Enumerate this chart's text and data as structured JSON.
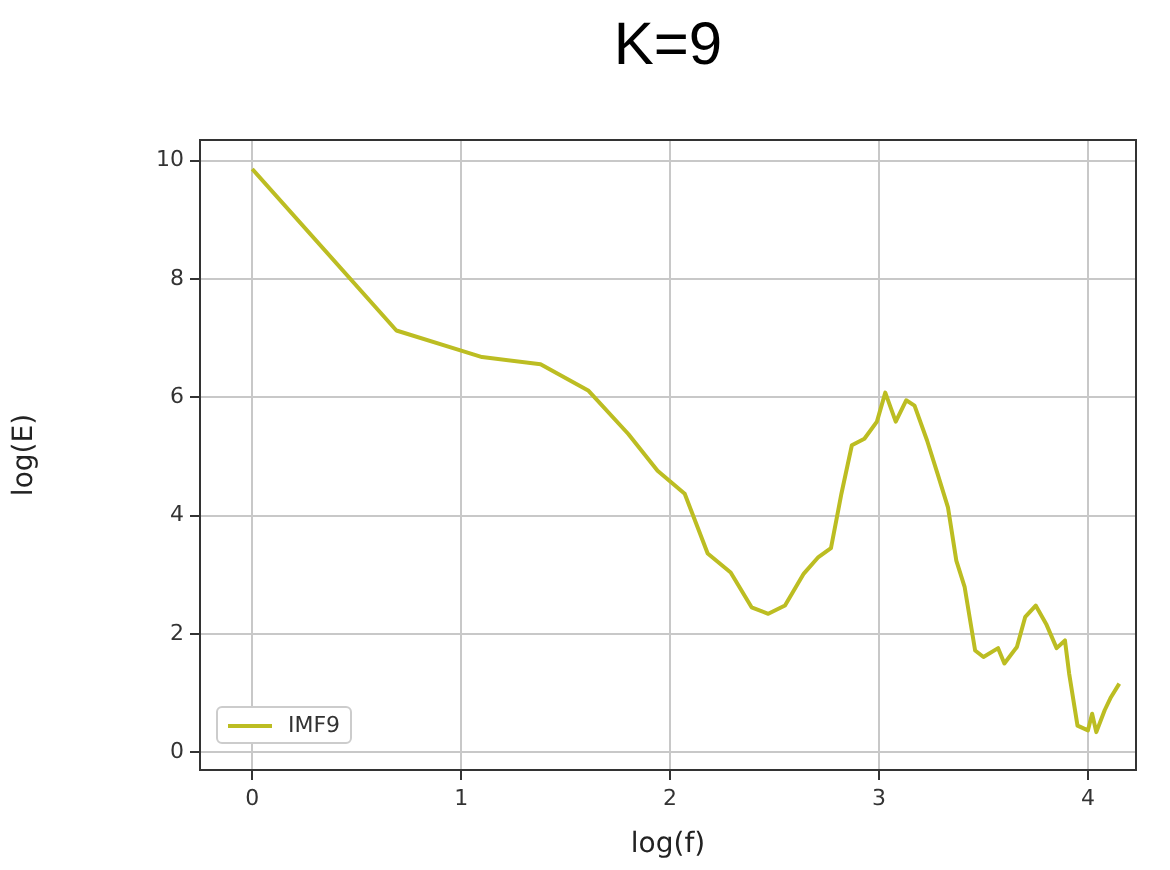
{
  "chart_data": {
    "type": "line",
    "title": "K=9",
    "xlabel": "log(f)",
    "ylabel": "log(E)",
    "xlim": [
      -0.25,
      4.23
    ],
    "ylim": [
      -0.3,
      10.35
    ],
    "xticks": [
      0,
      1,
      2,
      3,
      4
    ],
    "yticks": [
      0,
      2,
      4,
      6,
      8,
      10
    ],
    "grid": true,
    "legend": "bottom left",
    "marker": "none",
    "line_style": "solid",
    "series": [
      {
        "name": "IMF9",
        "color": "#bcbd22",
        "x": [
          0,
          0.69,
          1.0,
          1.1,
          1.38,
          1.61,
          1.8,
          1.94,
          2.07,
          2.18,
          2.29,
          2.39,
          2.47,
          2.55,
          2.64,
          2.71,
          2.77,
          2.82,
          2.87,
          2.93,
          2.99,
          3.03,
          3.08,
          3.13,
          3.17,
          3.23,
          3.28,
          3.33,
          3.37,
          3.41,
          3.46,
          3.5,
          3.57,
          3.6,
          3.66,
          3.7,
          3.75,
          3.8,
          3.85,
          3.89,
          3.91,
          3.95,
          4.0,
          4.02,
          4.04,
          4.08,
          4.11,
          4.15
        ],
        "values": [
          9.86,
          7.13,
          6.79,
          6.68,
          6.56,
          6.11,
          5.38,
          4.76,
          4.37,
          3.36,
          3.04,
          2.45,
          2.34,
          2.48,
          3.02,
          3.3,
          3.45,
          4.37,
          5.19,
          5.3,
          5.59,
          6.08,
          5.59,
          5.95,
          5.86,
          5.27,
          4.71,
          4.14,
          3.24,
          2.79,
          1.72,
          1.61,
          1.76,
          1.5,
          1.78,
          2.29,
          2.48,
          2.17,
          1.76,
          1.89,
          1.33,
          0.45,
          0.37,
          0.65,
          0.34,
          0.71,
          0.93,
          1.16
        ]
      }
    ]
  }
}
